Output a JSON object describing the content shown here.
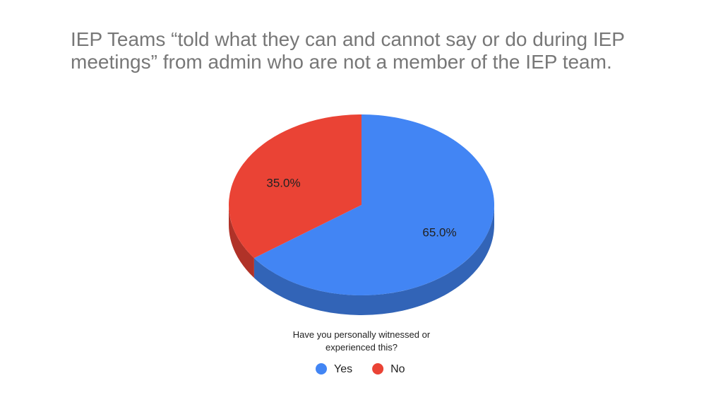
{
  "chart_data": {
    "type": "pie",
    "title": "IEP Teams “told what they can and cannot say or do during IEP meetings” from admin who are not a member of the IEP team.",
    "legend_title": "Have you personally witnessed or experienced this?",
    "categories": [
      "Yes",
      "No"
    ],
    "values": [
      65,
      35
    ],
    "value_labels": [
      "65.0%",
      "35.0%"
    ],
    "colors": [
      "#4285f4",
      "#ea4335"
    ],
    "legend": "bottom"
  }
}
